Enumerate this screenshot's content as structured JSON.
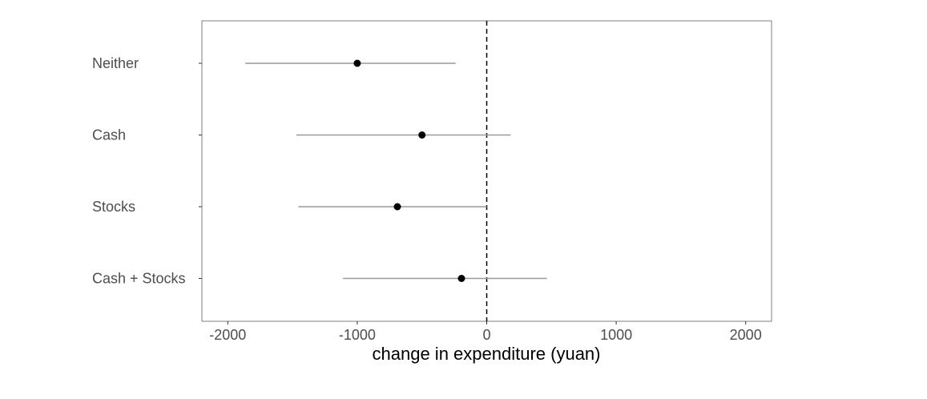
{
  "chart_data": {
    "type": "scatter",
    "title": "",
    "xlabel": "change in expenditure (yuan)",
    "ylabel": "",
    "xlim": [
      -2200,
      2200
    ],
    "x_ticks": [
      -2000,
      -1000,
      0,
      1000,
      2000
    ],
    "x_tick_labels": [
      "-2000",
      "-1000",
      "0",
      "1000",
      "2000"
    ],
    "categories": [
      "Neither",
      "Cash",
      "Stocks",
      "Cash + Stocks"
    ],
    "estimates": [
      -1000,
      -500,
      -690,
      -195
    ],
    "ci_lower": [
      -1865,
      -1470,
      -1455,
      -1110
    ],
    "ci_upper": [
      -240,
      185,
      0,
      465
    ],
    "reference_line": {
      "x": 0,
      "style": "dashed"
    },
    "grid": false,
    "legend": "none"
  }
}
